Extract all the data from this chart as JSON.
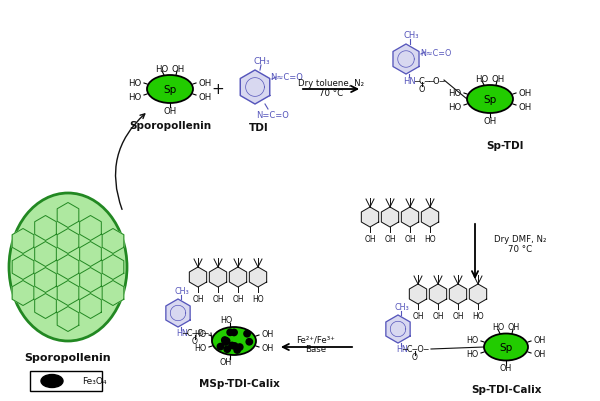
{
  "bg_color": "#ffffff",
  "green_color": "#22cc00",
  "green_light": "#aee8a0",
  "green_dark": "#228822",
  "green_edge": "#228822",
  "blue_color": "#5555bb",
  "black_color": "#111111",
  "figsize": [
    6.0,
    4.02
  ],
  "dpi": 100,
  "sporopollenin_label": "Sporopollenin",
  "tdi_label": "TDI",
  "sp_tdi_label": "Sp-TDI",
  "sp_tdi_calix_label": "Sp-TDI-Calix",
  "msp_tdi_calix_label": "MSp-TDI-Calix",
  "fe3o4_label": "Fe₃O₄",
  "arrow1_text1": "Dry toluene, N₂",
  "arrow1_text2": "70 °C",
  "arrow2_text1": "Dry DMF, N₂",
  "arrow2_text2": "70 °C",
  "arrow3_text1": "Fe²⁺/Fe³⁺",
  "arrow3_text2": "Base",
  "sp_text": "Sp",
  "ch3": "CH₃",
  "nco1": "N≈C=O",
  "nco2": "N=C=O"
}
